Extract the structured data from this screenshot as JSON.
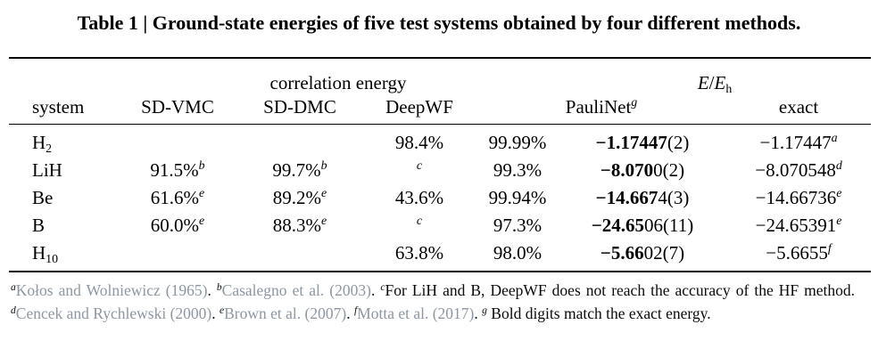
{
  "title": "Table 1 | Ground-state energies of five test systems obtained by four different methods.",
  "colors": {
    "text": "#000000",
    "citation": "#8d97a4",
    "rule": "#000000",
    "background": "#ffffff"
  },
  "table": {
    "group_headers": {
      "correlation_energy": "correlation energy",
      "e_over_eh": [
        [
          "i",
          "E"
        ],
        [
          "n",
          "/"
        ],
        [
          "i",
          "E"
        ],
        [
          "sub",
          "h"
        ]
      ]
    },
    "columns": {
      "system": "system",
      "sdvmc": "SD-VMC",
      "sddmc": "SD-DMC",
      "deepwf": "DeepWF",
      "paulinet": [
        [
          "n",
          "PauliNet"
        ],
        [
          "supi",
          "g"
        ]
      ],
      "exact": "exact"
    },
    "rows": [
      [
        [
          [
            "n",
            "H"
          ],
          [
            "sub",
            "2"
          ]
        ],
        [],
        [],
        [
          [
            "n",
            "98.4%"
          ]
        ],
        [
          [
            "n",
            "99.99%"
          ]
        ],
        [
          [
            "b",
            "−1.17447"
          ],
          [
            "n",
            "(2)"
          ]
        ],
        [
          [
            "n",
            "−1.17447"
          ],
          [
            "supi",
            "a"
          ]
        ]
      ],
      [
        [
          [
            "n",
            "LiH"
          ]
        ],
        [
          [
            "n",
            "91.5%"
          ],
          [
            "supi",
            "b"
          ]
        ],
        [
          [
            "n",
            "99.7%"
          ],
          [
            "supi",
            "b"
          ]
        ],
        [
          [
            "supi",
            "c"
          ]
        ],
        [
          [
            "n",
            "99.3%"
          ]
        ],
        [
          [
            "b",
            "−8.070"
          ],
          [
            "n",
            "0(2)"
          ]
        ],
        [
          [
            "n",
            "−8.070548"
          ],
          [
            "supi",
            "d"
          ]
        ]
      ],
      [
        [
          [
            "n",
            "Be"
          ]
        ],
        [
          [
            "n",
            "61.6%"
          ],
          [
            "supi",
            "e"
          ]
        ],
        [
          [
            "n",
            "89.2%"
          ],
          [
            "supi",
            "e"
          ]
        ],
        [
          [
            "n",
            "43.6%"
          ]
        ],
        [
          [
            "n",
            "99.94%"
          ]
        ],
        [
          [
            "b",
            "−14.667"
          ],
          [
            "n",
            "4(3)"
          ]
        ],
        [
          [
            "n",
            "−14.66736"
          ],
          [
            "supi",
            "e"
          ]
        ]
      ],
      [
        [
          [
            "n",
            "B"
          ]
        ],
        [
          [
            "n",
            "60.0%"
          ],
          [
            "supi",
            "e"
          ]
        ],
        [
          [
            "n",
            "88.3%"
          ],
          [
            "supi",
            "e"
          ]
        ],
        [
          [
            "supi",
            "c"
          ]
        ],
        [
          [
            "n",
            "97.3%"
          ]
        ],
        [
          [
            "b",
            "−24.65"
          ],
          [
            "n",
            "06(11)"
          ]
        ],
        [
          [
            "n",
            "−24.65391"
          ],
          [
            "supi",
            "e"
          ]
        ]
      ],
      [
        [
          [
            "n",
            "H"
          ],
          [
            "sub",
            "10"
          ]
        ],
        [],
        [],
        [
          [
            "n",
            "63.8%"
          ]
        ],
        [
          [
            "n",
            "98.0%"
          ]
        ],
        [
          [
            "b",
            "−5.66"
          ],
          [
            "n",
            "02(7)"
          ]
        ],
        [
          [
            "n",
            "−5.6655"
          ],
          [
            "supi",
            "f"
          ]
        ]
      ]
    ]
  },
  "footnotes": {
    "segments": [
      [
        "supi",
        "a"
      ],
      [
        "cite",
        "Kołos and Wolniewicz (1965)"
      ],
      [
        "n",
        ". "
      ],
      [
        "supi",
        "b"
      ],
      [
        "cite",
        "Casalegno et al. (2003)"
      ],
      [
        "n",
        ".  "
      ],
      [
        "supi",
        "c"
      ],
      [
        "n",
        "For LiH and B, DeepWF does not reach the accuracy of the HF method. "
      ],
      [
        "supi",
        "d"
      ],
      [
        "cite",
        "Cencek and Rychlewski (2000)"
      ],
      [
        "n",
        ". "
      ],
      [
        "supi",
        "e"
      ],
      [
        "cite",
        "Brown et al. (2007)"
      ],
      [
        "n",
        ". "
      ],
      [
        "supi",
        "f"
      ],
      [
        "cite",
        "Motta et al. (2017)"
      ],
      [
        "n",
        ". "
      ],
      [
        "supi",
        "g"
      ],
      [
        "n",
        " Bold digits match the exact energy."
      ]
    ]
  }
}
